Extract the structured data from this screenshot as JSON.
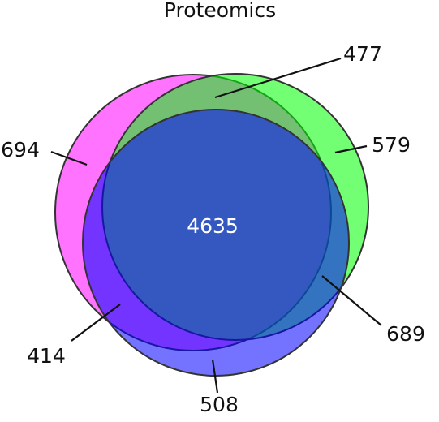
{
  "chart_data": {
    "type": "venn",
    "title": "Proteomics",
    "colors": [
      "#ff00ff",
      "#00ff00",
      "#0000ff"
    ],
    "values": [
      694,
      477,
      579,
      4635,
      414,
      689,
      508
    ]
  }
}
